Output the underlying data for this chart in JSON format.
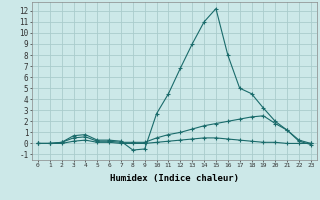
{
  "title": "",
  "xlabel": "Humidex (Indice chaleur)",
  "ylabel": "",
  "background_color": "#cce8e8",
  "grid_color": "#aacccc",
  "line_color": "#1a6b6b",
  "xlim": [
    -0.5,
    23.5
  ],
  "ylim": [
    -1.5,
    12.8
  ],
  "xticks": [
    0,
    1,
    2,
    3,
    4,
    5,
    6,
    7,
    8,
    9,
    10,
    11,
    12,
    13,
    14,
    15,
    16,
    17,
    18,
    19,
    20,
    21,
    22,
    23
  ],
  "yticks": [
    -1,
    0,
    1,
    2,
    3,
    4,
    5,
    6,
    7,
    8,
    9,
    10,
    11,
    12
  ],
  "series": [
    {
      "x": [
        0,
        1,
        2,
        3,
        4,
        5,
        6,
        7,
        8,
        9,
        10,
        11,
        12,
        13,
        14,
        15,
        16,
        17,
        18,
        19,
        20,
        21,
        22,
        23
      ],
      "y": [
        0.0,
        0.0,
        0.1,
        0.7,
        0.8,
        0.3,
        0.3,
        0.2,
        -0.6,
        -0.5,
        2.7,
        4.5,
        6.8,
        9.0,
        11.0,
        12.2,
        8.0,
        5.0,
        4.5,
        3.2,
        2.0,
        1.2,
        0.2,
        -0.1
      ]
    },
    {
      "x": [
        0,
        1,
        2,
        3,
        4,
        5,
        6,
        7,
        8,
        9,
        10,
        11,
        12,
        13,
        14,
        15,
        16,
        17,
        18,
        19,
        20,
        21,
        22,
        23
      ],
      "y": [
        0.0,
        0.0,
        0.1,
        0.5,
        0.6,
        0.2,
        0.2,
        0.1,
        0.1,
        0.1,
        0.5,
        0.8,
        1.0,
        1.3,
        1.6,
        1.8,
        2.0,
        2.2,
        2.4,
        2.5,
        1.8,
        1.2,
        0.3,
        0.0
      ]
    },
    {
      "x": [
        0,
        1,
        2,
        3,
        4,
        5,
        6,
        7,
        8,
        9,
        10,
        11,
        12,
        13,
        14,
        15,
        16,
        17,
        18,
        19,
        20,
        21,
        22,
        23
      ],
      "y": [
        0.0,
        0.0,
        0.0,
        0.2,
        0.3,
        0.1,
        0.1,
        0.0,
        0.0,
        0.0,
        0.1,
        0.2,
        0.3,
        0.4,
        0.5,
        0.5,
        0.4,
        0.3,
        0.2,
        0.1,
        0.1,
        0.0,
        0.0,
        0.0
      ]
    }
  ]
}
